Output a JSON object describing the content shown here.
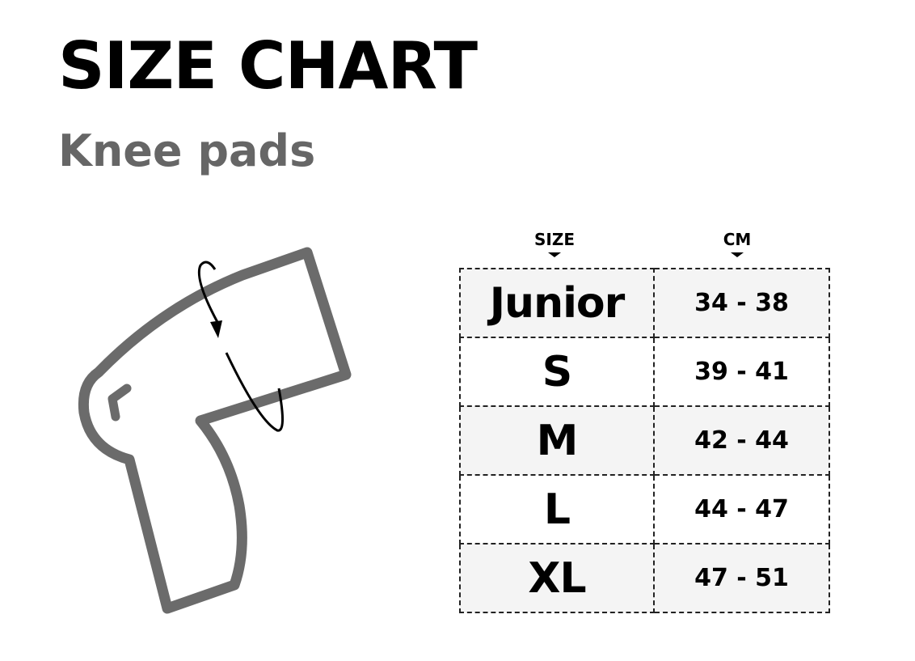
{
  "title": "SIZE CHART",
  "subtitle": "Knee pads",
  "icon": "knee-measurement-icon",
  "colors": {
    "outline": "#6b6b6b",
    "shade": "#f4f4f4"
  },
  "table": {
    "headers": [
      "SIZE",
      "CM"
    ],
    "rows": [
      {
        "size": "Junior",
        "cm": "34 - 38"
      },
      {
        "size": "S",
        "cm": "39 - 41"
      },
      {
        "size": "M",
        "cm": "42 - 44"
      },
      {
        "size": "L",
        "cm": "44 - 47"
      },
      {
        "size": "XL",
        "cm": "47 - 51"
      }
    ]
  }
}
